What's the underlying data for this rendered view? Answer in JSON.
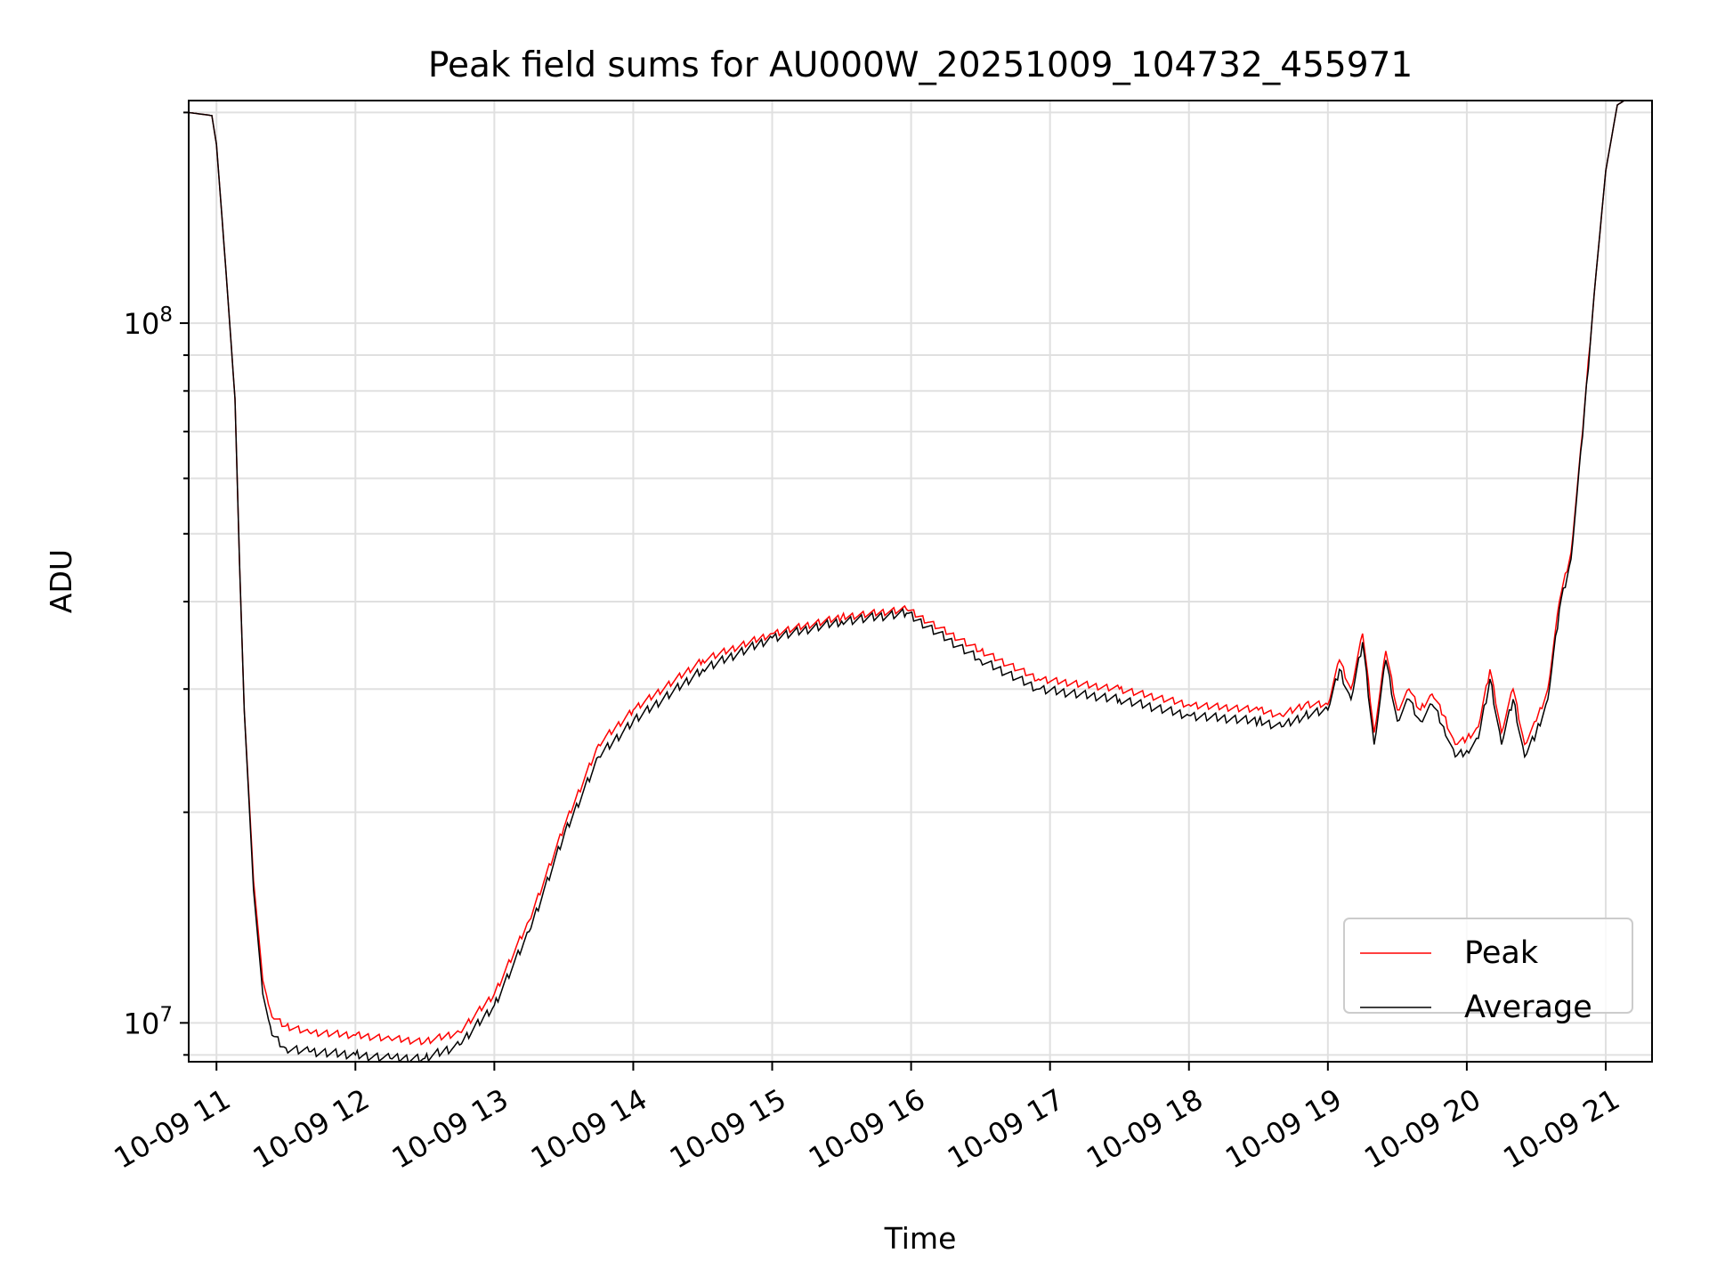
{
  "chart_data": {
    "type": "line",
    "title": "Peak field sums for AU000W_20251009_104732_455971",
    "xlabel": "Time",
    "ylabel": "ADU",
    "y_scale": "log",
    "ylim": [
      8800000,
      208000000
    ],
    "xlim": [
      "2025-10-09 10:48",
      "2025-10-09 21:20"
    ],
    "x_ticks": [
      "2025-10-09 11:00",
      "2025-10-09 12:00",
      "2025-10-09 13:00",
      "2025-10-09 14:00",
      "2025-10-09 15:00",
      "2025-10-09 16:00",
      "2025-10-09 17:00",
      "2025-10-09 18:00",
      "2025-10-09 19:00",
      "2025-10-09 20:00",
      "2025-10-09 21:00"
    ],
    "x_tick_labels": [
      "10-09 11",
      "10-09 12",
      "10-09 13",
      "10-09 14",
      "10-09 15",
      "10-09 16",
      "10-09 17",
      "10-09 18",
      "10-09 19",
      "10-09 20",
      "10-09 21"
    ],
    "y_ticks": [
      10000000,
      100000000
    ],
    "y_tick_labels": [
      {
        "base": "10",
        "exp": "7"
      },
      {
        "base": "10",
        "exp": "8"
      }
    ],
    "grid": true,
    "legend": "lower-right",
    "x": [
      "2025-10-09 10:48",
      "2025-10-09 10:58",
      "2025-10-09 11:00",
      "2025-10-09 11:04",
      "2025-10-09 11:08",
      "2025-10-09 11:10",
      "2025-10-09 11:12",
      "2025-10-09 11:16",
      "2025-10-09 11:20",
      "2025-10-09 11:24",
      "2025-10-09 11:30",
      "2025-10-09 11:40",
      "2025-10-09 12:00",
      "2025-10-09 12:15",
      "2025-10-09 12:30",
      "2025-10-09 12:45",
      "2025-10-09 13:00",
      "2025-10-09 13:15",
      "2025-10-09 13:30",
      "2025-10-09 13:45",
      "2025-10-09 14:00",
      "2025-10-09 14:30",
      "2025-10-09 15:00",
      "2025-10-09 15:30",
      "2025-10-09 15:58",
      "2025-10-09 16:30",
      "2025-10-09 16:55",
      "2025-10-09 17:30",
      "2025-10-09 18:00",
      "2025-10-09 18:30",
      "2025-10-09 18:40",
      "2025-10-09 18:50",
      "2025-10-09 19:00",
      "2025-10-09 19:05",
      "2025-10-09 19:10",
      "2025-10-09 19:15",
      "2025-10-09 19:20",
      "2025-10-09 19:25",
      "2025-10-09 19:30",
      "2025-10-09 19:35",
      "2025-10-09 19:40",
      "2025-10-09 19:45",
      "2025-10-09 19:50",
      "2025-10-09 19:55",
      "2025-10-09 20:00",
      "2025-10-09 20:05",
      "2025-10-09 20:10",
      "2025-10-09 20:15",
      "2025-10-09 20:20",
      "2025-10-09 20:25",
      "2025-10-09 20:30",
      "2025-10-09 20:35",
      "2025-10-09 20:40",
      "2025-10-09 20:45",
      "2025-10-09 20:50",
      "2025-10-09 20:55",
      "2025-10-09 21:00",
      "2025-10-09 21:05",
      "2025-10-09 21:08"
    ],
    "series": [
      {
        "name": "Peak",
        "color": "#ff0000",
        "values": [
          200000000,
          198000000,
          180000000,
          120000000,
          78000000,
          45000000,
          28000000,
          16000000,
          11500000,
          10200000,
          9900000,
          9700000,
          9600000,
          9500000,
          9400000,
          9700000,
          11000000,
          14000000,
          19000000,
          25000000,
          28000000,
          33000000,
          36000000,
          38000000,
          39000000,
          34000000,
          31000000,
          30000000,
          28500000,
          28000000,
          27500000,
          28500000,
          28500000,
          33000000,
          30000000,
          36000000,
          26000000,
          34000000,
          28000000,
          30000000,
          28000000,
          29500000,
          27500000,
          25000000,
          25500000,
          26500000,
          32000000,
          26000000,
          30000000,
          25000000,
          27000000,
          30000000,
          40000000,
          47000000,
          70000000,
          110000000,
          165000000,
          205000000,
          208000000
        ]
      },
      {
        "name": "Average",
        "color": "#000000",
        "values": [
          200000000,
          198000000,
          180000000,
          120000000,
          78000000,
          45000000,
          28000000,
          15500000,
          11000000,
          9600000,
          9200000,
          9100000,
          9000000,
          8900000,
          8900000,
          9300000,
          10600000,
          13500000,
          18500000,
          24000000,
          27000000,
          32000000,
          35500000,
          37500000,
          38500000,
          33000000,
          30000000,
          29000000,
          27500000,
          27000000,
          26500000,
          27500000,
          28000000,
          32000000,
          29000000,
          35000000,
          25000000,
          33000000,
          27000000,
          29000000,
          27000000,
          28500000,
          26500000,
          24000000,
          24500000,
          25500000,
          31000000,
          25000000,
          29000000,
          24000000,
          26000000,
          29000000,
          39000000,
          46000000,
          69000000,
          110000000,
          165000000,
          205000000,
          208000000
        ]
      }
    ]
  }
}
